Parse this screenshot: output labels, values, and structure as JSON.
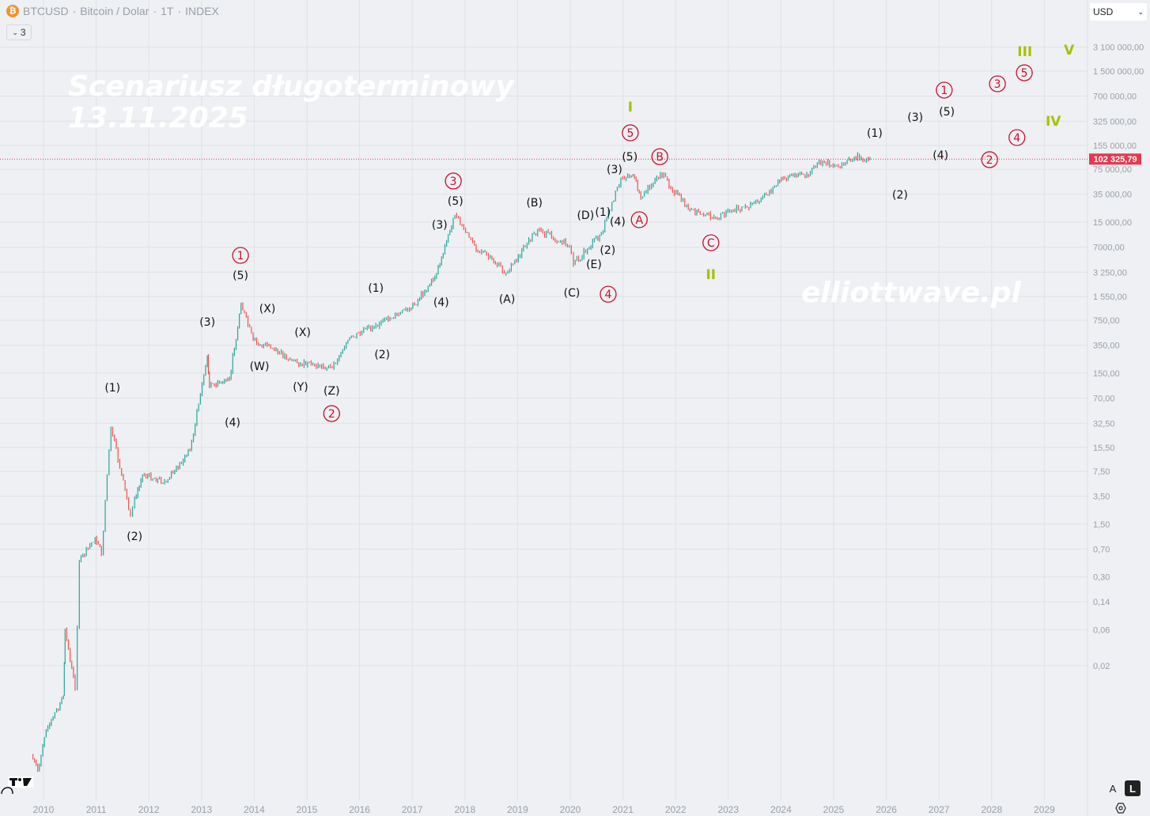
{
  "header": {
    "symbol": "BTCUSD",
    "description": "Bitcoin / Dolar",
    "interval": "1T",
    "exchange": "INDEX",
    "separator": "·",
    "collapse_count": "3",
    "icon": "bitcoin-icon"
  },
  "currency_selector": {
    "value": "USD"
  },
  "scale_buttons": {
    "auto": "A",
    "log": "L"
  },
  "watermarks": {
    "title_line1": "Scenariusz długoterminowy",
    "title_line2": "13.11.2025",
    "site": "elliottwave.pl"
  },
  "colors": {
    "up": "#26a69a",
    "down": "#ef5350",
    "wave_red": "#c8102e",
    "wave_green": "#a8c000",
    "price_line": "#e53950",
    "grid": "#dfe2e6",
    "axis_text": "#9aa0a8"
  },
  "chart_data": {
    "type": "candlestick-line",
    "title": "BTCUSD · Bitcoin / Dolar · 1T · INDEX",
    "yscale": "log",
    "ylim": [
      0.0008,
      4500000
    ],
    "xlim": [
      2009.18,
      2029.82
    ],
    "grid": true,
    "x_ticks": [
      2010,
      2011,
      2012,
      2013,
      2014,
      2015,
      2016,
      2017,
      2018,
      2019,
      2020,
      2021,
      2022,
      2023,
      2024,
      2025,
      2026,
      2027,
      2028,
      2029
    ],
    "y_ticks": [
      {
        "v": 3100000,
        "label": "3 100 000,00"
      },
      {
        "v": 1500000,
        "label": "1 500 000,00"
      },
      {
        "v": 700000,
        "label": "700 000,00"
      },
      {
        "v": 325000,
        "label": "325 000,00"
      },
      {
        "v": 155000,
        "label": "155 000,00"
      },
      {
        "v": 75000,
        "label": "75 000,00"
      },
      {
        "v": 35000,
        "label": "35 000,00"
      },
      {
        "v": 15000,
        "label": "15 000,00"
      },
      {
        "v": 7000,
        "label": "7000,00"
      },
      {
        "v": 3250,
        "label": "3 250,00"
      },
      {
        "v": 1550,
        "label": "1 550,00"
      },
      {
        "v": 750,
        "label": "750,00"
      },
      {
        "v": 350,
        "label": "350,00"
      },
      {
        "v": 150,
        "label": "150,00"
      },
      {
        "v": 70,
        "label": "70,00"
      },
      {
        "v": 32.5,
        "label": "32,50"
      },
      {
        "v": 15.5,
        "label": "15,50"
      },
      {
        "v": 7.5,
        "label": "7,50"
      },
      {
        "v": 3.5,
        "label": "3,50"
      },
      {
        "v": 1.5,
        "label": "1,50"
      },
      {
        "v": 0.7,
        "label": "0,70"
      },
      {
        "v": 0.3,
        "label": "0,30"
      },
      {
        "v": 0.14,
        "label": "0,14"
      },
      {
        "v": 0.06,
        "label": "0,06"
      },
      {
        "v": 0.02,
        "label": "0,02"
      }
    ],
    "last_price": {
      "value": 102325.79,
      "label": "102 325,79"
    },
    "series": [
      {
        "name": "BTCUSD",
        "points": [
          [
            2009.77,
            0.0013
          ],
          [
            2009.89,
            0.0008
          ],
          [
            2010.05,
            0.0027
          ],
          [
            2010.38,
            0.008
          ],
          [
            2010.41,
            0.06
          ],
          [
            2010.6,
            0.01
          ],
          [
            2010.68,
            0.48
          ],
          [
            2010.98,
            1.0
          ],
          [
            2011.1,
            0.6
          ],
          [
            2011.28,
            29
          ],
          [
            2011.65,
            2.0
          ],
          [
            2011.73,
            3.3
          ],
          [
            2011.88,
            6.8
          ],
          [
            2012.33,
            5.4
          ],
          [
            2012.78,
            14
          ],
          [
            2013.11,
            250
          ],
          [
            2013.15,
            98
          ],
          [
            2013.53,
            123
          ],
          [
            2013.75,
            1230
          ],
          [
            2013.98,
            410
          ],
          [
            2014.88,
            200
          ],
          [
            2015.48,
            178
          ],
          [
            2015.78,
            410
          ],
          [
            2016.31,
            660
          ],
          [
            2016.98,
            1070
          ],
          [
            2017.43,
            2800
          ],
          [
            2017.81,
            18600
          ],
          [
            2018.18,
            7400
          ],
          [
            2018.78,
            3200
          ],
          [
            2019.38,
            12000
          ],
          [
            2019.98,
            7400
          ],
          [
            2020.06,
            4100
          ],
          [
            2020.59,
            10700
          ],
          [
            2020.96,
            57500
          ],
          [
            2021.19,
            64600
          ],
          [
            2021.34,
            31600
          ],
          [
            2021.71,
            67600
          ],
          [
            2022.24,
            21900
          ],
          [
            2022.76,
            17400
          ],
          [
            2023.59,
            28200
          ],
          [
            2024.04,
            57500
          ],
          [
            2024.49,
            64600
          ],
          [
            2024.79,
            97700
          ],
          [
            2025.09,
            79400
          ],
          [
            2025.39,
            110000
          ],
          [
            2025.69,
            102325.79
          ]
        ]
      }
    ],
    "annotations": [
      {
        "t": "(1)",
        "s": "paren",
        "x": 2011.31,
        "y": 97
      },
      {
        "t": "(2)",
        "s": "paren",
        "x": 2011.73,
        "y": 1.04
      },
      {
        "t": "(3)",
        "s": "paren",
        "x": 2013.11,
        "y": 716
      },
      {
        "t": "(4)",
        "s": "paren",
        "x": 2013.59,
        "y": 33.5
      },
      {
        "t": "1",
        "s": "circle",
        "x": 2013.74,
        "y": 5430
      },
      {
        "t": "(5)",
        "s": "paren",
        "x": 2013.74,
        "y": 2970
      },
      {
        "t": "(X)",
        "s": "paren",
        "x": 2014.25,
        "y": 1080
      },
      {
        "t": "(W)",
        "s": "paren",
        "x": 2014.1,
        "y": 186
      },
      {
        "t": "(X)",
        "s": "paren",
        "x": 2014.92,
        "y": 524
      },
      {
        "t": "(Y)",
        "s": "paren",
        "x": 2014.88,
        "y": 99
      },
      {
        "t": "(Z)",
        "s": "paren",
        "x": 2015.47,
        "y": 88
      },
      {
        "t": "2",
        "s": "circle",
        "x": 2015.47,
        "y": 43.6
      },
      {
        "t": "(1)",
        "s": "paren",
        "x": 2016.31,
        "y": 2020
      },
      {
        "t": "(2)",
        "s": "paren",
        "x": 2016.43,
        "y": 267
      },
      {
        "t": "(3)",
        "s": "paren",
        "x": 2017.52,
        "y": 13900
      },
      {
        "t": "(4)",
        "s": "paren",
        "x": 2017.55,
        "y": 1310
      },
      {
        "t": "3",
        "s": "circle",
        "x": 2017.78,
        "y": 52400
      },
      {
        "t": "(5)",
        "s": "paren",
        "x": 2017.82,
        "y": 28600
      },
      {
        "t": "(A)",
        "s": "paren",
        "x": 2018.8,
        "y": 1440
      },
      {
        "t": "(B)",
        "s": "paren",
        "x": 2019.32,
        "y": 27300
      },
      {
        "t": "(C)",
        "s": "paren",
        "x": 2020.03,
        "y": 1750
      },
      {
        "t": "(D)",
        "s": "paren",
        "x": 2020.29,
        "y": 18600
      },
      {
        "t": "(1)",
        "s": "paren",
        "x": 2020.62,
        "y": 20400
      },
      {
        "t": "(4)",
        "s": "paren",
        "x": 2020.9,
        "y": 15300
      },
      {
        "t": "(E)",
        "s": "paren",
        "x": 2020.45,
        "y": 4160
      },
      {
        "t": "(2)",
        "s": "paren",
        "x": 2020.71,
        "y": 6430
      },
      {
        "t": "4",
        "s": "circle",
        "x": 2020.72,
        "y": 1660
      },
      {
        "t": "(3)",
        "s": "paren",
        "x": 2020.84,
        "y": 75200
      },
      {
        "t": "(5)",
        "s": "paren",
        "x": 2021.13,
        "y": 110000
      },
      {
        "t": "5",
        "s": "circle",
        "x": 2021.14,
        "y": 228000
      },
      {
        "t": "I",
        "s": "roman",
        "x": 2021.14,
        "y": 505000
      },
      {
        "t": "A",
        "s": "circle",
        "x": 2021.31,
        "y": 16100
      },
      {
        "t": "B",
        "s": "circle",
        "x": 2021.7,
        "y": 110000
      },
      {
        "t": "C",
        "s": "circle",
        "x": 2022.67,
        "y": 7980
      },
      {
        "t": "II",
        "s": "roman",
        "x": 2022.67,
        "y": 3040
      },
      {
        "t": "(1)",
        "s": "paren",
        "x": 2025.78,
        "y": 228000
      },
      {
        "t": "(2)",
        "s": "paren",
        "x": 2026.26,
        "y": 34800
      },
      {
        "t": "(3)",
        "s": "paren",
        "x": 2026.55,
        "y": 369000
      },
      {
        "t": "(4)",
        "s": "paren",
        "x": 2027.03,
        "y": 116000
      },
      {
        "t": "(5)",
        "s": "paren",
        "x": 2027.15,
        "y": 437000
      },
      {
        "t": "1",
        "s": "circle",
        "x": 2027.1,
        "y": 838000
      },
      {
        "t": "2",
        "s": "circle",
        "x": 2027.96,
        "y": 100500
      },
      {
        "t": "3",
        "s": "circle",
        "x": 2028.11,
        "y": 1016000
      },
      {
        "t": "4",
        "s": "circle",
        "x": 2028.48,
        "y": 197000
      },
      {
        "t": "5",
        "s": "circle",
        "x": 2028.62,
        "y": 1422000
      },
      {
        "t": "III",
        "s": "roman",
        "x": 2028.63,
        "y": 2730000
      },
      {
        "t": "IV",
        "s": "roman",
        "x": 2029.17,
        "y": 327000
      },
      {
        "t": "V",
        "s": "roman",
        "x": 2029.47,
        "y": 2860000
      }
    ]
  }
}
